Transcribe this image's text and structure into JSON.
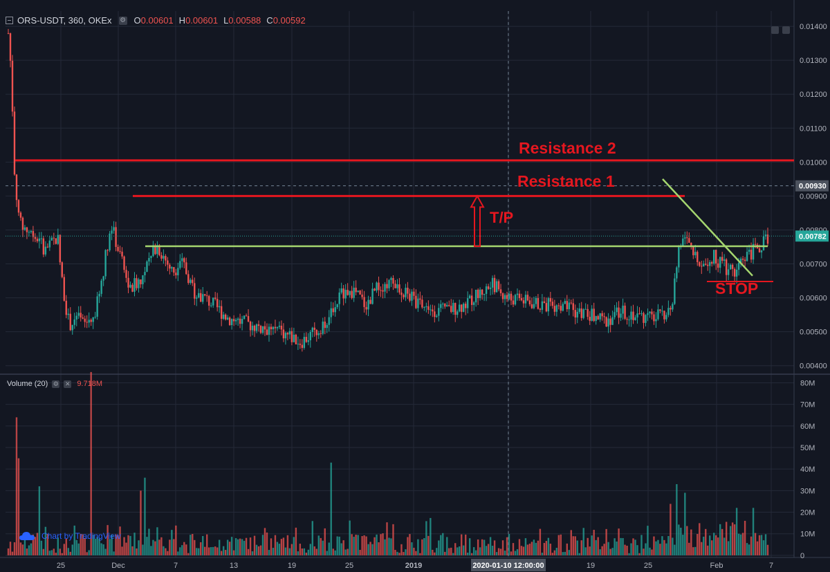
{
  "header": {
    "symbol": "ORS-USDT, 360, OKEx",
    "open_label": "O",
    "open": "0.00601",
    "high_label": "H",
    "high": "0.00601",
    "low_label": "L",
    "low": "0.00588",
    "close_label": "C",
    "close": "0.00592"
  },
  "volume_header": {
    "title": "Volume (20)",
    "value": "9.718M"
  },
  "attribution": "Chart by TradingView",
  "colors": {
    "background": "#131722",
    "grid": "#242a38",
    "up": "#26a69a",
    "down": "#ef5350",
    "annotation_red": "#e5171f",
    "annotation_green": "#a5d66f",
    "axis_text": "#b2b5be"
  },
  "icons": [
    "collapse-icon",
    "settings-icon",
    "close-icon",
    "tradingview-cloud-icon"
  ],
  "chart_data": [
    {
      "type": "candlestick",
      "title": "ORS-USDT, 360, OKEx",
      "y_ticks": [
        "0.01400",
        "0.01300",
        "0.01200",
        "0.01100",
        "0.01000",
        "0.00900",
        "0.00800",
        "0.00700",
        "0.00600",
        "0.00500",
        "0.00400"
      ],
      "y_tick_values": [
        0.014,
        0.013,
        0.012,
        0.011,
        0.01,
        0.009,
        0.008,
        0.007,
        0.006,
        0.005,
        0.004
      ],
      "ylim": [
        0.00375,
        0.01445
      ],
      "x_ticks": [
        "25",
        "Dec",
        "7",
        "13",
        "19",
        "25",
        "2019",
        "2020-01-10 12:00:00",
        "19",
        "25",
        "Feb",
        "7"
      ],
      "price_labels": [
        {
          "text": "0.00930",
          "value": 0.0093,
          "style": "crosshair"
        },
        {
          "text": "0.00782",
          "value": 0.00782,
          "style": "last"
        }
      ],
      "crosshair": {
        "x_label": "2020-01-10 12:00:00",
        "price": 0.0093
      },
      "series_path": [
        {
          "t": 0.0,
          "p": 0.0138
        },
        {
          "t": 0.004,
          "p": 0.0126
        },
        {
          "t": 0.008,
          "p": 0.0098
        },
        {
          "t": 0.014,
          "p": 0.0082
        },
        {
          "t": 0.03,
          "p": 0.0079
        },
        {
          "t": 0.05,
          "p": 0.0074
        },
        {
          "t": 0.065,
          "p": 0.0078
        },
        {
          "t": 0.07,
          "p": 0.0066
        },
        {
          "t": 0.08,
          "p": 0.0052
        },
        {
          "t": 0.09,
          "p": 0.0054
        },
        {
          "t": 0.1,
          "p": 0.0052
        },
        {
          "t": 0.115,
          "p": 0.0056
        },
        {
          "t": 0.125,
          "p": 0.0068
        },
        {
          "t": 0.135,
          "p": 0.0082
        },
        {
          "t": 0.145,
          "p": 0.0074
        },
        {
          "t": 0.16,
          "p": 0.0062
        },
        {
          "t": 0.175,
          "p": 0.0066
        },
        {
          "t": 0.185,
          "p": 0.007
        },
        {
          "t": 0.195,
          "p": 0.0076
        },
        {
          "t": 0.215,
          "p": 0.0068
        },
        {
          "t": 0.23,
          "p": 0.007
        },
        {
          "t": 0.245,
          "p": 0.0062
        },
        {
          "t": 0.27,
          "p": 0.0058
        },
        {
          "t": 0.29,
          "p": 0.0054
        },
        {
          "t": 0.32,
          "p": 0.0052
        },
        {
          "t": 0.34,
          "p": 0.0051
        },
        {
          "t": 0.36,
          "p": 0.005
        },
        {
          "t": 0.385,
          "p": 0.0047
        },
        {
          "t": 0.405,
          "p": 0.005
        },
        {
          "t": 0.425,
          "p": 0.0055
        },
        {
          "t": 0.44,
          "p": 0.0062
        },
        {
          "t": 0.455,
          "p": 0.0062
        },
        {
          "t": 0.47,
          "p": 0.0058
        },
        {
          "t": 0.49,
          "p": 0.0064
        },
        {
          "t": 0.51,
          "p": 0.0064
        },
        {
          "t": 0.53,
          "p": 0.006
        },
        {
          "t": 0.55,
          "p": 0.0057
        },
        {
          "t": 0.575,
          "p": 0.0056
        },
        {
          "t": 0.6,
          "p": 0.0058
        },
        {
          "t": 0.625,
          "p": 0.0062
        },
        {
          "t": 0.64,
          "p": 0.0064
        },
        {
          "t": 0.655,
          "p": 0.006
        },
        {
          "t": 0.68,
          "p": 0.0059
        },
        {
          "t": 0.7,
          "p": 0.0058
        },
        {
          "t": 0.72,
          "p": 0.0058
        },
        {
          "t": 0.745,
          "p": 0.0056
        },
        {
          "t": 0.765,
          "p": 0.0055
        },
        {
          "t": 0.785,
          "p": 0.0053
        },
        {
          "t": 0.805,
          "p": 0.0056
        },
        {
          "t": 0.825,
          "p": 0.0055
        },
        {
          "t": 0.845,
          "p": 0.0054
        },
        {
          "t": 0.865,
          "p": 0.0055
        },
        {
          "t": 0.875,
          "p": 0.0058
        },
        {
          "t": 0.882,
          "p": 0.0076
        },
        {
          "t": 0.89,
          "p": 0.0078
        },
        {
          "t": 0.9,
          "p": 0.0073
        },
        {
          "t": 0.915,
          "p": 0.0071
        },
        {
          "t": 0.93,
          "p": 0.0072
        },
        {
          "t": 0.945,
          "p": 0.0069
        },
        {
          "t": 0.96,
          "p": 0.0068
        },
        {
          "t": 0.975,
          "p": 0.0073
        },
        {
          "t": 0.99,
          "p": 0.0075
        },
        {
          "t": 1.0,
          "p": 0.0078
        }
      ],
      "annotations": [
        {
          "kind": "hline",
          "label": "Resistance 2",
          "value": 0.01005,
          "color": "#e5171f"
        },
        {
          "kind": "hline",
          "label": "Resistance 1",
          "value": 0.009,
          "color": "#e5171f"
        },
        {
          "kind": "hline",
          "label": "",
          "value": 0.00752,
          "color": "#a5d66f"
        },
        {
          "kind": "trendline",
          "label": "",
          "from": 0.0095,
          "to": 0.00665,
          "color": "#a5d66f"
        },
        {
          "kind": "hline",
          "label": "STOP",
          "value": 0.00648,
          "color": "#e5171f"
        },
        {
          "kind": "arrow",
          "label": "T/P",
          "from": 0.00752,
          "to": 0.009,
          "color": "#e5171f"
        }
      ]
    },
    {
      "type": "bar",
      "title": "Volume (20)",
      "y_ticks": [
        "80M",
        "70M",
        "60M",
        "50M",
        "40M",
        "30M",
        "20M",
        "10M",
        "0"
      ],
      "y_tick_values": [
        80,
        70,
        60,
        50,
        40,
        30,
        20,
        10,
        0
      ],
      "ylim": [
        -1,
        84
      ],
      "spikes": [
        {
          "t": 0.012,
          "v": 64
        },
        {
          "t": 0.014,
          "v": 45
        },
        {
          "t": 0.04,
          "v": 32
        },
        {
          "t": 0.11,
          "v": 85
        },
        {
          "t": 0.175,
          "v": 30
        },
        {
          "t": 0.18,
          "v": 36
        },
        {
          "t": 0.425,
          "v": 43
        },
        {
          "t": 0.88,
          "v": 33
        },
        {
          "t": 0.89,
          "v": 29
        },
        {
          "t": 0.96,
          "v": 22
        },
        {
          "t": 0.97,
          "v": 16
        },
        {
          "t": 0.98,
          "v": 22
        }
      ]
    }
  ]
}
